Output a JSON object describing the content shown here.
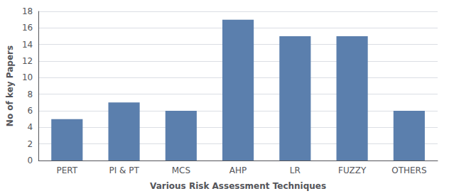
{
  "chart_data": {
    "type": "bar",
    "categories": [
      "PERT",
      "PI & PT",
      "MCS",
      "AHP",
      "LR",
      "FUZZY",
      "OTHERS"
    ],
    "values": [
      5,
      7,
      6,
      17,
      15,
      15,
      6
    ],
    "color": "#5b7fad",
    "xlabel": "Various Risk Assessment Techniques",
    "ylabel": "No of key Papers",
    "ylim": [
      0,
      18
    ],
    "yticks": [
      0,
      2,
      4,
      6,
      8,
      10,
      12,
      14,
      16,
      18
    ],
    "grid": true
  }
}
